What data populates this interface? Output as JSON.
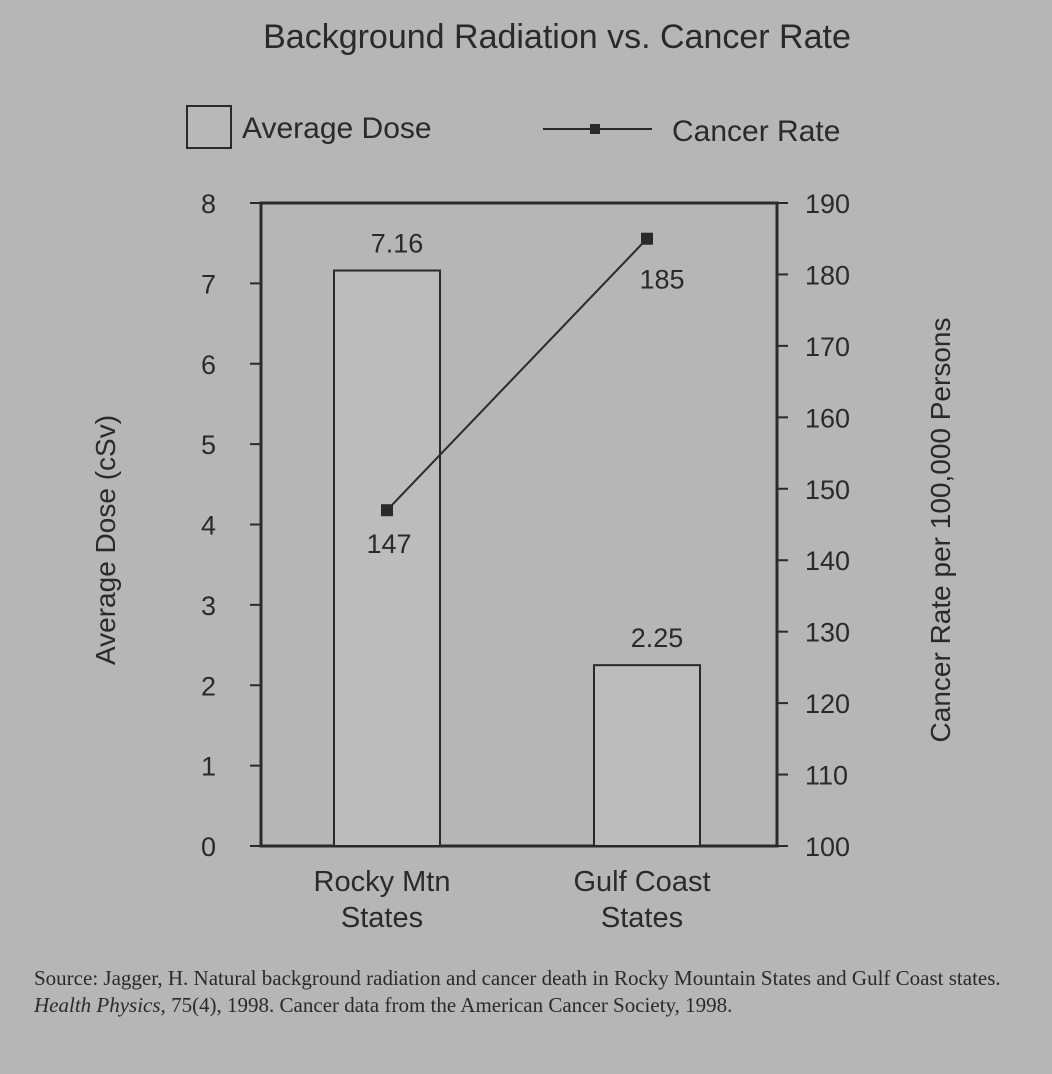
{
  "chart_data": {
    "type": "bar+line",
    "title": "Background Radiation vs. Cancer Rate",
    "categories": [
      "Rocky Mtn States",
      "Gulf Coast States"
    ],
    "category_lines": [
      [
        "Rocky Mtn",
        "States"
      ],
      [
        "Gulf Coast",
        "States"
      ]
    ],
    "series": [
      {
        "name": "Average Dose",
        "type": "bar",
        "axis": "left",
        "values": [
          7.16,
          2.25
        ],
        "labels": [
          "7.16",
          "2.25"
        ]
      },
      {
        "name": "Cancer Rate",
        "type": "line",
        "axis": "right",
        "values": [
          147,
          185
        ],
        "labels": [
          "147",
          "185"
        ]
      }
    ],
    "y_left": {
      "label": "Average Dose (cSv)",
      "range": [
        0,
        8
      ],
      "ticks": [
        "0",
        "1",
        "2",
        "3",
        "4",
        "5",
        "6",
        "7",
        "8"
      ]
    },
    "y_right": {
      "label": "Cancer Rate per 100,000 Persons",
      "range": [
        100,
        190
      ],
      "ticks": [
        "100",
        "110",
        "120",
        "130",
        "140",
        "150",
        "160",
        "170",
        "180",
        "190"
      ]
    },
    "legend": {
      "placement": "top",
      "entries": [
        "Average Dose",
        "Cancer Rate"
      ]
    },
    "grid": false
  },
  "source": {
    "label": "Source:",
    "text1": " Jagger, H. Natural background radiation and cancer death in Rocky Mountain States and Gulf Coast states. ",
    "journal": "Health Physics,",
    "text2": " 75(4), 1998. Cancer data from the American Cancer Society, 1998."
  },
  "colors": {
    "background": "#b6b6b6",
    "ink": "#2a2a2a"
  }
}
